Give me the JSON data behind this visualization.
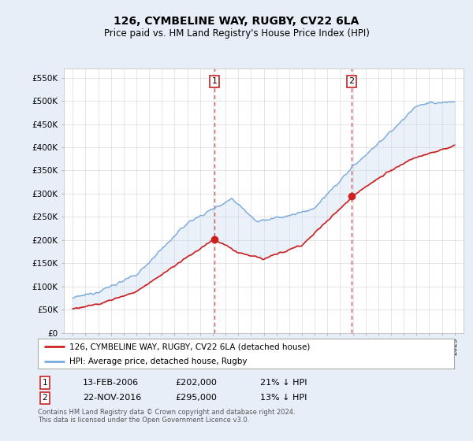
{
  "title": "126, CYMBELINE WAY, RUGBY, CV22 6LA",
  "subtitle": "Price paid vs. HM Land Registry's House Price Index (HPI)",
  "ylim": [
    0,
    570000
  ],
  "yticks": [
    0,
    50000,
    100000,
    150000,
    200000,
    250000,
    300000,
    350000,
    400000,
    450000,
    500000,
    550000
  ],
  "hpi_color": "#7aaadd",
  "hpi_fill_color": "#c8d8f0",
  "price_color": "#cc2222",
  "marker1_year": 2006.12,
  "marker2_year": 2016.9,
  "sale1_price_val": 202000,
  "sale2_price_val": 295000,
  "sale1_date": "13-FEB-2006",
  "sale1_price": "£202,000",
  "sale1_pct": "21% ↓ HPI",
  "sale2_date": "22-NOV-2016",
  "sale2_price": "£295,000",
  "sale2_pct": "13% ↓ HPI",
  "legend_label1": "126, CYMBELINE WAY, RUGBY, CV22 6LA (detached house)",
  "legend_label2": "HPI: Average price, detached house, Rugby",
  "footnote1": "Contains HM Land Registry data © Crown copyright and database right 2024.",
  "footnote2": "This data is licensed under the Open Government Licence v3.0.",
  "background_color": "#e8eef8",
  "plot_bg_color": "#ffffff",
  "grid_color": "#cccccc"
}
